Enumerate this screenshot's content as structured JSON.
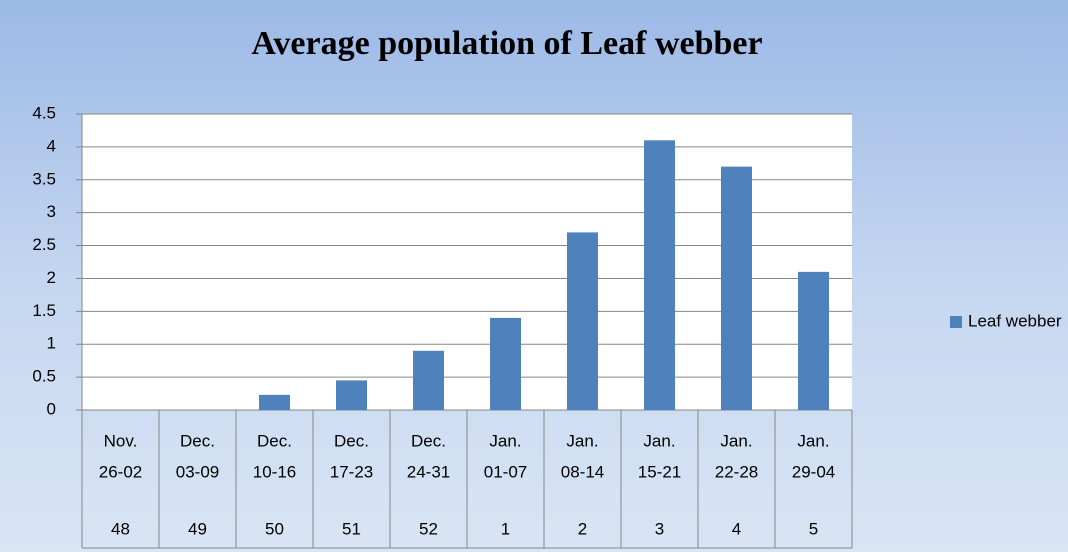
{
  "chart_data": {
    "type": "bar",
    "title": "Average population of  Leaf webber",
    "categories": [
      {
        "month": "Nov.",
        "dates": "26-02",
        "week": "48"
      },
      {
        "month": "Dec.",
        "dates": "03-09",
        "week": "49"
      },
      {
        "month": "Dec.",
        "dates": "10-16",
        "week": "50"
      },
      {
        "month": "Dec.",
        "dates": "17-23",
        "week": "51"
      },
      {
        "month": "Dec.",
        "dates": "24-31",
        "week": "52"
      },
      {
        "month": "Jan.",
        "dates": "01-07",
        "week": "1"
      },
      {
        "month": "Jan.",
        "dates": "08-14",
        "week": "2"
      },
      {
        "month": "Jan.",
        "dates": "15-21",
        "week": "3"
      },
      {
        "month": "Jan.",
        "dates": "22-28",
        "week": "4"
      },
      {
        "month": "Jan.",
        "dates": "29-04",
        "week": "5"
      }
    ],
    "series": [
      {
        "name": "Leaf webber",
        "color": "#4f81bd",
        "values": [
          0,
          0,
          0.23,
          0.45,
          0.9,
          1.4,
          2.7,
          4.1,
          3.7,
          2.1
        ]
      }
    ],
    "ylim": [
      0,
      4.5
    ],
    "yticks": [
      0,
      0.5,
      1,
      1.5,
      2,
      2.5,
      3,
      3.5,
      4,
      4.5
    ],
    "grid": true,
    "legend": "right"
  }
}
